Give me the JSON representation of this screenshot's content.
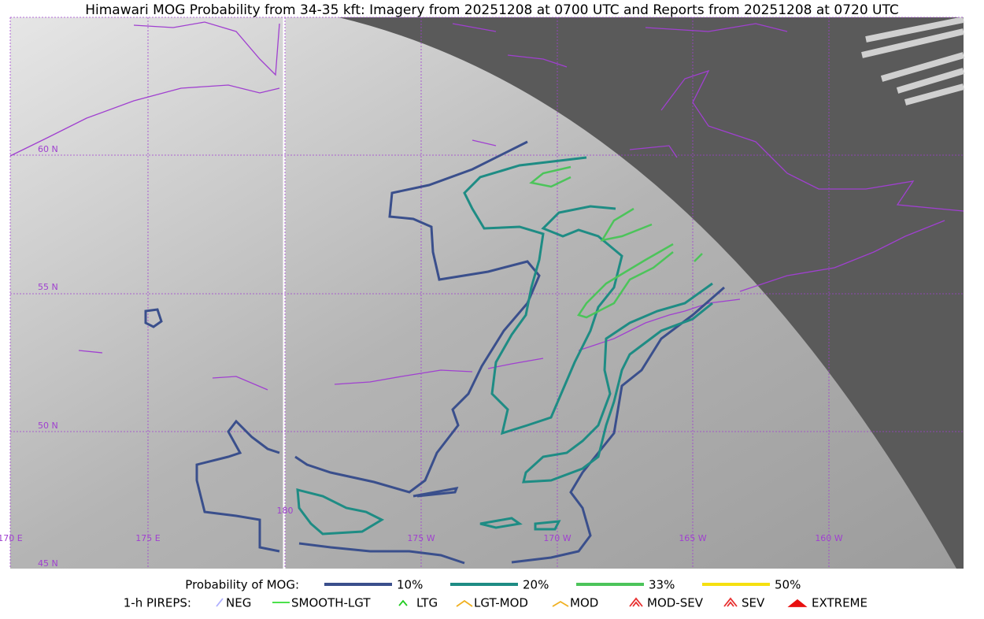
{
  "title": "Himawari MOG Probability from 34-35 kft: Imagery from 20251208 at 0700 UTC and Reports from 20251208 at 0720 UTC",
  "grid_labels": {
    "lat": [
      "60 N",
      "55 N",
      "50 N",
      "45 N"
    ],
    "lon": [
      "170 E",
      "175 E",
      "180",
      "175 W",
      "170 W",
      "165 W",
      "160 W"
    ]
  },
  "legend": {
    "probability": {
      "label": "Probability of MOG:",
      "items": [
        {
          "label": "10%",
          "color": "#3a4f8c"
        },
        {
          "label": "20%",
          "color": "#1e8c84"
        },
        {
          "label": "33%",
          "color": "#4cc45a"
        },
        {
          "label": "50%",
          "color": "#f5e010"
        }
      ]
    },
    "pireps": {
      "label": "1-h PIREPS:",
      "items": [
        {
          "label": "NEG",
          "color": "#b0b0ff"
        },
        {
          "label": "SMOOTH-LGT",
          "color": "#33dd33"
        },
        {
          "label": "LTG",
          "color": "#22cc22"
        },
        {
          "label": "LGT-MOD",
          "color": "#f0b020"
        },
        {
          "label": "MOD",
          "color": "#f0b020"
        },
        {
          "label": "MOD-SEV",
          "color": "#e83030"
        },
        {
          "label": "SEV",
          "color": "#e83030"
        },
        {
          "label": "EXTREME",
          "color": "#e81010"
        }
      ]
    }
  }
}
